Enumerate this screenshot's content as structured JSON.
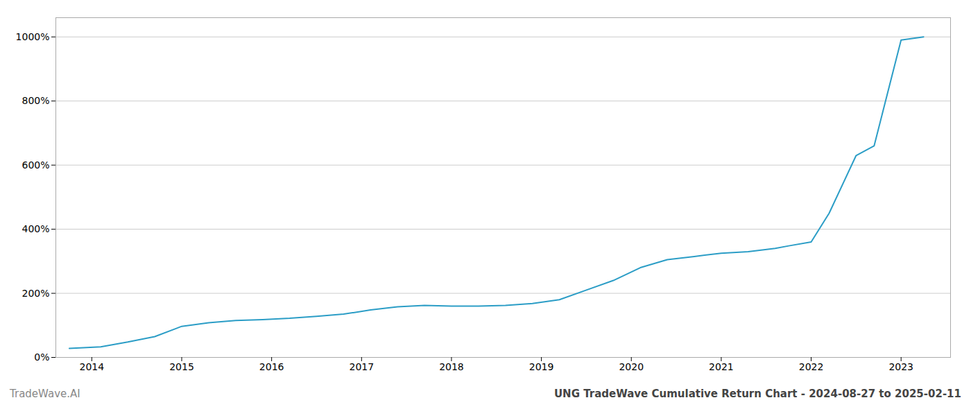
{
  "chart_data": {
    "type": "line",
    "title": "UNG TradeWave Cumulative Return Chart - 2024-08-27 to 2025-02-11",
    "annotations": [
      "TradeWave.AI"
    ],
    "x": [
      2013.75,
      2014.1,
      2014.4,
      2014.7,
      2015.0,
      2015.3,
      2015.6,
      2015.9,
      2016.2,
      2016.5,
      2016.8,
      2017.1,
      2017.4,
      2017.7,
      2018.0,
      2018.3,
      2018.6,
      2018.9,
      2019.2,
      2019.5,
      2019.8,
      2020.1,
      2020.4,
      2020.7,
      2021.0,
      2021.3,
      2021.6,
      2021.75,
      2022.0,
      2022.2,
      2022.5,
      2022.7,
      2023.0,
      2023.25
    ],
    "values": [
      28,
      33,
      48,
      65,
      97,
      108,
      115,
      118,
      122,
      128,
      135,
      148,
      158,
      162,
      160,
      160,
      162,
      168,
      180,
      210,
      240,
      280,
      305,
      315,
      325,
      330,
      340,
      348,
      360,
      450,
      630,
      660,
      990,
      1000
    ],
    "color": "#2b9dc6",
    "xlim": [
      2013.6,
      2023.55
    ],
    "xticks": [
      2014,
      2015,
      2016,
      2017,
      2018,
      2019,
      2020,
      2021,
      2022,
      2023
    ],
    "ylim": [
      0,
      1060
    ],
    "yticks": [
      {
        "value": 0,
        "label": "0%"
      },
      {
        "value": 200,
        "label": "200%"
      },
      {
        "value": 400,
        "label": "400%"
      },
      {
        "value": 600,
        "label": "600%"
      },
      {
        "value": 800,
        "label": "800%"
      },
      {
        "value": 1000,
        "label": "1000%"
      }
    ],
    "grid": true
  }
}
